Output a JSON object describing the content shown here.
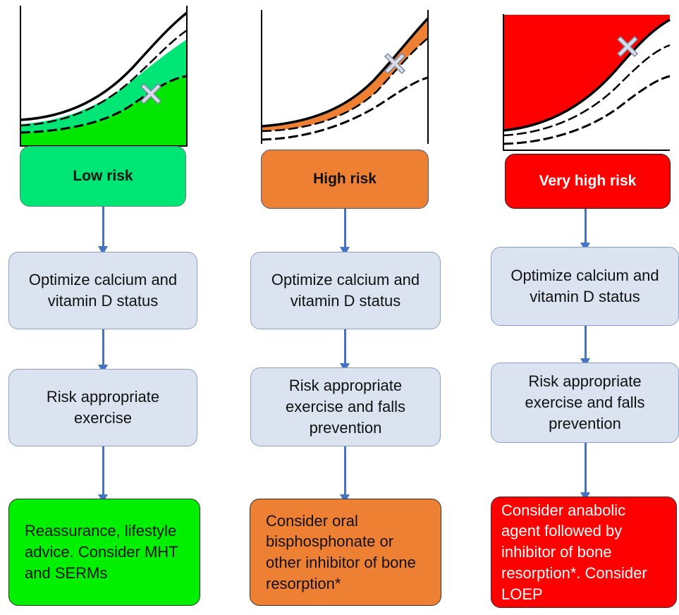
{
  "columns": [
    {
      "risk_label": "Low risk",
      "risk_color": "#00e676",
      "step1": "Optimize calcium and vitamin D status",
      "step2": "Risk  appropriate exercise",
      "recommendation": "Reassurance, lifestyle advice. Consider MHT and SERMs",
      "recommendation_color": "#00f000",
      "marker": "x-marker-icon"
    },
    {
      "risk_label": "High risk",
      "risk_color": "#ee8033",
      "step1": "Optimize calcium and vitamin D status",
      "step2": "Risk  appropriate exercise and falls prevention",
      "recommendation": "Consider oral bisphosphonate or other inhibitor of bone resorption*",
      "recommendation_color": "#ee8033",
      "marker": "x-marker-icon"
    },
    {
      "risk_label": "Very high risk",
      "risk_color": "#ff0000",
      "step1": "Optimize calcium and vitamin D status",
      "step2": "Risk  appropriate exercise and falls prevention",
      "recommendation": "Consider anabolic agent followed by inhibitor of bone resorption*. Consider LOEP",
      "recommendation_color": "#ff0000",
      "marker": "x-marker-icon"
    }
  ],
  "colors": {
    "arrow": "#4472c4",
    "step_fill": "#dbe3f0",
    "marker": "#d9dde6"
  }
}
